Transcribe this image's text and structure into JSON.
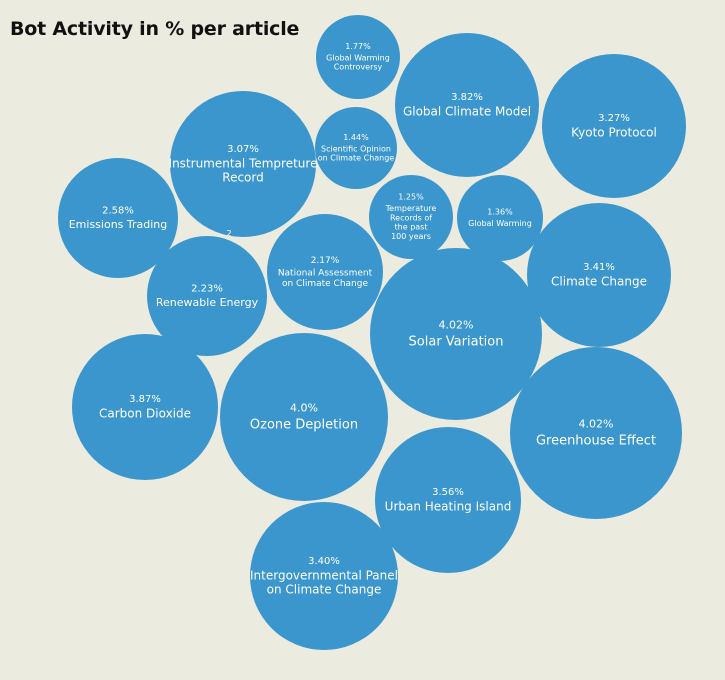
{
  "chart_data": {
    "type": "bubble",
    "title": "Bot Activity in % per article",
    "bubble_color": "#3a96cc",
    "background_color": "#ecebe0",
    "stray_label": "2",
    "items": [
      {
        "name": "Global Warming Controversy",
        "label_lines": [
          "Global Warming",
          "Controversy"
        ],
        "value": 1.77,
        "value_label": "1.77%"
      },
      {
        "name": "Global Climate Model",
        "label_lines": [
          "Global Climate Model"
        ],
        "value": 3.82,
        "value_label": "3.82%"
      },
      {
        "name": "Kyoto Protocol",
        "label_lines": [
          "Kyoto Protocol"
        ],
        "value": 3.27,
        "value_label": "3.27%"
      },
      {
        "name": "Instrumental Tempreture Record",
        "label_lines": [
          "Instrumental Tempreture",
          "Record"
        ],
        "value": 3.07,
        "value_label": "3.07%"
      },
      {
        "name": "Scientific Opinion on Climate Change",
        "label_lines": [
          "Scientific Opinion",
          "on Climate Change"
        ],
        "value": 1.44,
        "value_label": "1.44%"
      },
      {
        "name": "Emissions Trading",
        "label_lines": [
          "Emissions Trading"
        ],
        "value": 2.58,
        "value_label": "2.58%"
      },
      {
        "name": "Temperature Records of the past 100 years",
        "label_lines": [
          "Temperature",
          "Records of",
          "the past",
          "100 years"
        ],
        "value": 1.25,
        "value_label": "1.25%"
      },
      {
        "name": "Global Warming",
        "label_lines": [
          "Global Warming"
        ],
        "value": 1.36,
        "value_label": "1.36%"
      },
      {
        "name": "Climate Change",
        "label_lines": [
          "Climate Change"
        ],
        "value": 3.41,
        "value_label": "3.41%"
      },
      {
        "name": "National Assessment on Climate Change",
        "label_lines": [
          "National Assessment",
          "on Climate Change"
        ],
        "value": 2.17,
        "value_label": "2.17%"
      },
      {
        "name": "Renewable Energy",
        "label_lines": [
          "Renewable Energy"
        ],
        "value": 2.23,
        "value_label": "2.23%"
      },
      {
        "name": "Solar Variation",
        "label_lines": [
          "Solar Variation"
        ],
        "value": 4.02,
        "value_label": "4.02%"
      },
      {
        "name": "Carbon Dioxide",
        "label_lines": [
          "Carbon Dioxide"
        ],
        "value": 3.87,
        "value_label": "3.87%"
      },
      {
        "name": "Ozone Depletion",
        "label_lines": [
          "Ozone Depletion"
        ],
        "value": 4.0,
        "value_label": "4.0%"
      },
      {
        "name": "Greenhouse Effect",
        "label_lines": [
          "Greenhouse Effect"
        ],
        "value": 4.02,
        "value_label": "4.02%"
      },
      {
        "name": "Urban Heating Island",
        "label_lines": [
          "Urban Heating Island"
        ],
        "value": 3.56,
        "value_label": "3.56%"
      },
      {
        "name": "Intergovernmental Panel on Climate Change",
        "label_lines": [
          "Intergovernmental Panel",
          "on Climate Change"
        ],
        "value": 3.4,
        "value_label": "3.40%"
      }
    ]
  }
}
